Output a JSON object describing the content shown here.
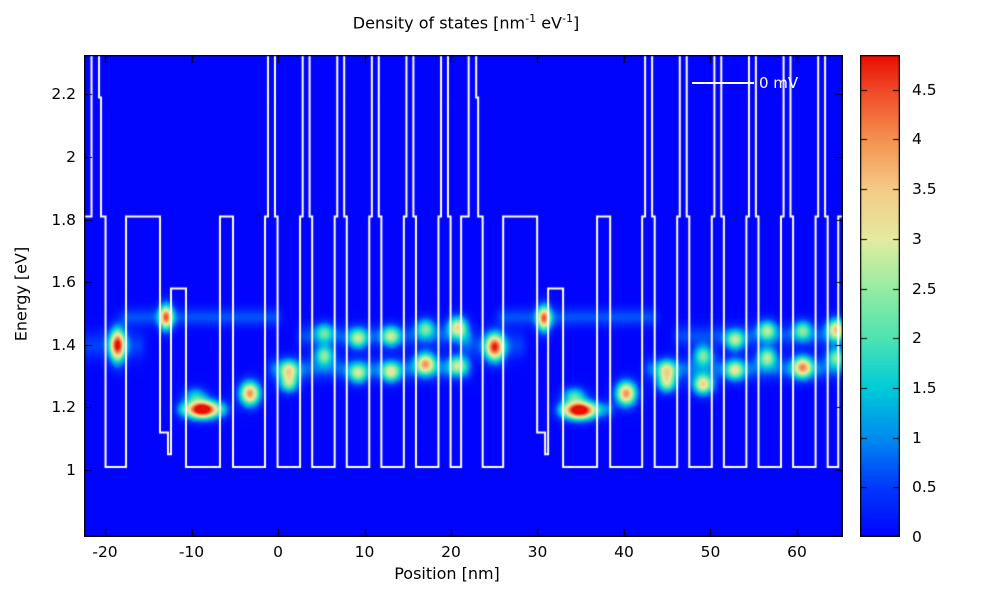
{
  "title": {
    "segments": [
      {
        "text": "Density of states [nm",
        "sup": false
      },
      {
        "text": "-1",
        "sup": true
      },
      {
        "text": " eV",
        "sup": false
      },
      {
        "text": "-1",
        "sup": true
      },
      {
        "text": "]",
        "sup": false
      }
    ]
  },
  "legend": {
    "label": "0 mV",
    "line_color": "#ffffff"
  },
  "axes": {
    "x": {
      "label": "Position [nm]",
      "ticks": [
        -20,
        -10,
        0,
        10,
        20,
        30,
        40,
        50,
        60
      ],
      "tick_labels": [
        "-20",
        "-10",
        "0",
        "10",
        "20",
        "30",
        "40",
        "50",
        "60"
      ]
    },
    "y": {
      "label": "Energy [eV]",
      "ticks": [
        1,
        1.2,
        1.4,
        1.6,
        1.8,
        2,
        2.2
      ],
      "tick_labels": [
        "1",
        "1.2",
        "1.4",
        "1.6",
        "1.8",
        "2",
        "2.2"
      ]
    }
  },
  "colorbar": {
    "min": 0,
    "max": 4.85,
    "ticks": [
      0,
      0.5,
      1,
      1.5,
      2,
      2.5,
      3,
      3.5,
      4,
      4.5
    ],
    "tick_labels": [
      "0",
      "0.5",
      "1",
      "1.5",
      "2",
      "2.5",
      "3",
      "3.5",
      "4",
      "4.5"
    ],
    "stops": [
      [
        0.0,
        "#0004fc"
      ],
      [
        0.5,
        "#0038fc"
      ],
      [
        1.0,
        "#008cf0"
      ],
      [
        1.5,
        "#00ccd8"
      ],
      [
        2.0,
        "#4ce4b4"
      ],
      [
        2.5,
        "#96eca2"
      ],
      [
        3.0,
        "#e4eca0"
      ],
      [
        3.5,
        "#f4cc86"
      ],
      [
        4.0,
        "#f59250"
      ],
      [
        4.5,
        "#ef4a28"
      ],
      [
        4.85,
        "#e90d02"
      ]
    ]
  },
  "chart_data": {
    "type": "heatmap",
    "title": "Density of states [nm^-1 eV^-1]",
    "xlabel": "Position [nm]",
    "ylabel": "Energy [eV]",
    "xlim": [
      -22.43,
      65.32
    ],
    "ylim": [
      0.786,
      2.326
    ],
    "zlim": [
      0,
      4.85
    ],
    "x_ticks": [
      -20,
      -10,
      0,
      10,
      20,
      30,
      40,
      50,
      60
    ],
    "y_ticks": [
      1,
      1.2,
      1.4,
      1.6,
      1.8,
      2,
      2.2
    ],
    "z_ticks": [
      0,
      0.5,
      1,
      1.5,
      2,
      2.5,
      3,
      3.5,
      4,
      4.5
    ],
    "background_value": 0,
    "legend_entries": [
      "0 mV"
    ],
    "band_profile": {
      "description": "conduction band edge overlay (white steps), superlattice of two periods",
      "color": "#ffffff",
      "period_nm": 43.6,
      "period_origin_nm": -22.43,
      "offsets_nm": [
        0,
        43.6,
        87.2
      ],
      "segments_dx0_dx1_E": [
        [
          0.0,
          0.87,
          1.81
        ],
        [
          0.87,
          1.74,
          2.36
        ],
        [
          1.74,
          1.97,
          2.19
        ],
        [
          1.97,
          2.49,
          1.81
        ],
        [
          2.49,
          4.86,
          1.01
        ],
        [
          4.86,
          8.79,
          1.81
        ],
        [
          8.79,
          9.71,
          1.12
        ],
        [
          9.71,
          10.06,
          1.05
        ],
        [
          10.06,
          11.79,
          1.58
        ],
        [
          11.79,
          15.72,
          1.01
        ],
        [
          15.72,
          17.23,
          1.81
        ],
        [
          17.23,
          20.93,
          1.01
        ],
        [
          20.93,
          21.27,
          1.81
        ],
        [
          21.27,
          22.08,
          2.36
        ],
        [
          22.08,
          22.38,
          1.81
        ],
        [
          22.38,
          24.98,
          1.01
        ],
        [
          24.98,
          25.28,
          1.81
        ],
        [
          25.28,
          26.08,
          2.36
        ],
        [
          26.08,
          26.38,
          1.81
        ],
        [
          26.38,
          28.98,
          1.01
        ],
        [
          28.98,
          29.28,
          1.81
        ],
        [
          29.28,
          30.08,
          2.36
        ],
        [
          30.08,
          30.38,
          1.81
        ],
        [
          30.38,
          32.98,
          1.01
        ],
        [
          32.98,
          33.28,
          1.81
        ],
        [
          33.28,
          34.08,
          2.36
        ],
        [
          34.08,
          34.38,
          1.81
        ],
        [
          34.38,
          36.98,
          1.01
        ],
        [
          36.98,
          37.28,
          1.81
        ],
        [
          37.28,
          38.08,
          2.36
        ],
        [
          38.08,
          38.38,
          1.81
        ],
        [
          38.38,
          40.98,
          1.01
        ],
        [
          40.98,
          41.28,
          1.81
        ],
        [
          41.28,
          42.08,
          2.36
        ],
        [
          42.08,
          42.38,
          1.81
        ],
        [
          42.38,
          43.6,
          1.01
        ]
      ]
    },
    "states_format": "[x_nm, E_eV, peak_dos, sigma_x_nm, sigma_E_eV]",
    "states": [
      [
        -18.6,
        1.4,
        4.5,
        0.62,
        0.036
      ],
      [
        -13.0,
        1.49,
        3.8,
        0.55,
        0.028
      ],
      [
        -8.8,
        1.195,
        4.85,
        1.25,
        0.02
      ],
      [
        -9.6,
        1.24,
        1.4,
        0.9,
        0.018
      ],
      [
        -3.3,
        1.246,
        4.0,
        0.8,
        0.026
      ],
      [
        1.2,
        1.32,
        2.5,
        0.75,
        0.022
      ],
      [
        1.2,
        1.278,
        2.3,
        0.75,
        0.02
      ],
      [
        5.3,
        1.368,
        2.3,
        0.75,
        0.022
      ],
      [
        5.3,
        1.44,
        1.7,
        0.75,
        0.022
      ],
      [
        9.2,
        1.422,
        2.3,
        0.75,
        0.022
      ],
      [
        9.2,
        1.31,
        2.3,
        0.75,
        0.022
      ],
      [
        13.0,
        1.429,
        2.3,
        0.75,
        0.022
      ],
      [
        13.0,
        1.314,
        2.5,
        0.75,
        0.022
      ],
      [
        17.0,
        1.454,
        2.0,
        0.75,
        0.022
      ],
      [
        17.0,
        1.342,
        3.4,
        0.8,
        0.024
      ],
      [
        20.7,
        1.458,
        3.0,
        0.75,
        0.024
      ],
      [
        20.7,
        1.336,
        2.2,
        0.75,
        0.022
      ],
      [
        25.0,
        1.394,
        4.3,
        0.75,
        0.03
      ],
      [
        30.7,
        1.486,
        3.8,
        0.55,
        0.028
      ],
      [
        34.8,
        1.192,
        4.85,
        1.25,
        0.02
      ],
      [
        34.2,
        1.24,
        1.8,
        0.9,
        0.018
      ],
      [
        40.2,
        1.246,
        4.0,
        0.8,
        0.026
      ],
      [
        44.9,
        1.32,
        2.5,
        0.75,
        0.022
      ],
      [
        44.9,
        1.278,
        2.4,
        0.75,
        0.02
      ],
      [
        49.1,
        1.275,
        3.3,
        0.8,
        0.022
      ],
      [
        49.1,
        1.368,
        2.2,
        0.75,
        0.022
      ],
      [
        52.8,
        1.416,
        2.3,
        0.75,
        0.022
      ],
      [
        52.8,
        1.32,
        2.4,
        0.75,
        0.022
      ],
      [
        56.5,
        1.448,
        2.3,
        0.75,
        0.022
      ],
      [
        56.5,
        1.362,
        2.5,
        0.75,
        0.022
      ],
      [
        60.6,
        1.448,
        2.0,
        0.75,
        0.022
      ],
      [
        60.6,
        1.33,
        3.4,
        0.8,
        0.024
      ],
      [
        64.5,
        1.451,
        3.2,
        0.75,
        0.024
      ],
      [
        64.5,
        1.362,
        2.2,
        0.75,
        0.022
      ]
    ],
    "background_bands_format": "[E_eV, x0_nm, x1_nm, amplitude, sigma_E_eV]",
    "background_bands": [
      [
        1.49,
        -17.5,
        -0.5,
        0.65,
        0.02
      ],
      [
        1.49,
        26.0,
        43.0,
        0.65,
        0.02
      ],
      [
        1.325,
        -0.5,
        21.6,
        0.75,
        0.024
      ],
      [
        1.325,
        43.0,
        65.3,
        0.75,
        0.024
      ],
      [
        1.43,
        3.0,
        21.6,
        0.6,
        0.024
      ],
      [
        1.43,
        46.5,
        65.3,
        0.6,
        0.024
      ],
      [
        1.195,
        -11.0,
        -6.5,
        0.9,
        0.018
      ],
      [
        1.195,
        33.0,
        38.0,
        0.9,
        0.018
      ],
      [
        1.4,
        -21.9,
        -16.2,
        0.55,
        0.03
      ],
      [
        1.4,
        21.7,
        27.8,
        0.55,
        0.03
      ]
    ]
  }
}
